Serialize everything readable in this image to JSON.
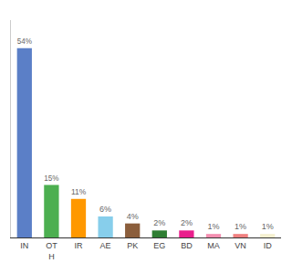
{
  "chart_data": {
    "type": "bar",
    "categories": [
      "IN",
      "OT\nH",
      "IR",
      "AE",
      "PK",
      "EG",
      "BD",
      "MA",
      "VN",
      "ID"
    ],
    "values": [
      54,
      15,
      11,
      6,
      4,
      2,
      2,
      1,
      1,
      1
    ],
    "value_labels": [
      "54%",
      "15%",
      "11%",
      "6%",
      "4%",
      "2%",
      "2%",
      "1%",
      "1%",
      "1%"
    ],
    "data_labels": true,
    "colors": [
      "#5b7fc7",
      "#4caf50",
      "#ff9800",
      "#87ceeb",
      "#8b5e3c",
      "#2e7d32",
      "#e91e8c",
      "#f48fb1",
      "#f08080",
      "#f5f0d0"
    ],
    "ylim": [
      0,
      62
    ],
    "tick_labels": "x",
    "grid": false
  }
}
